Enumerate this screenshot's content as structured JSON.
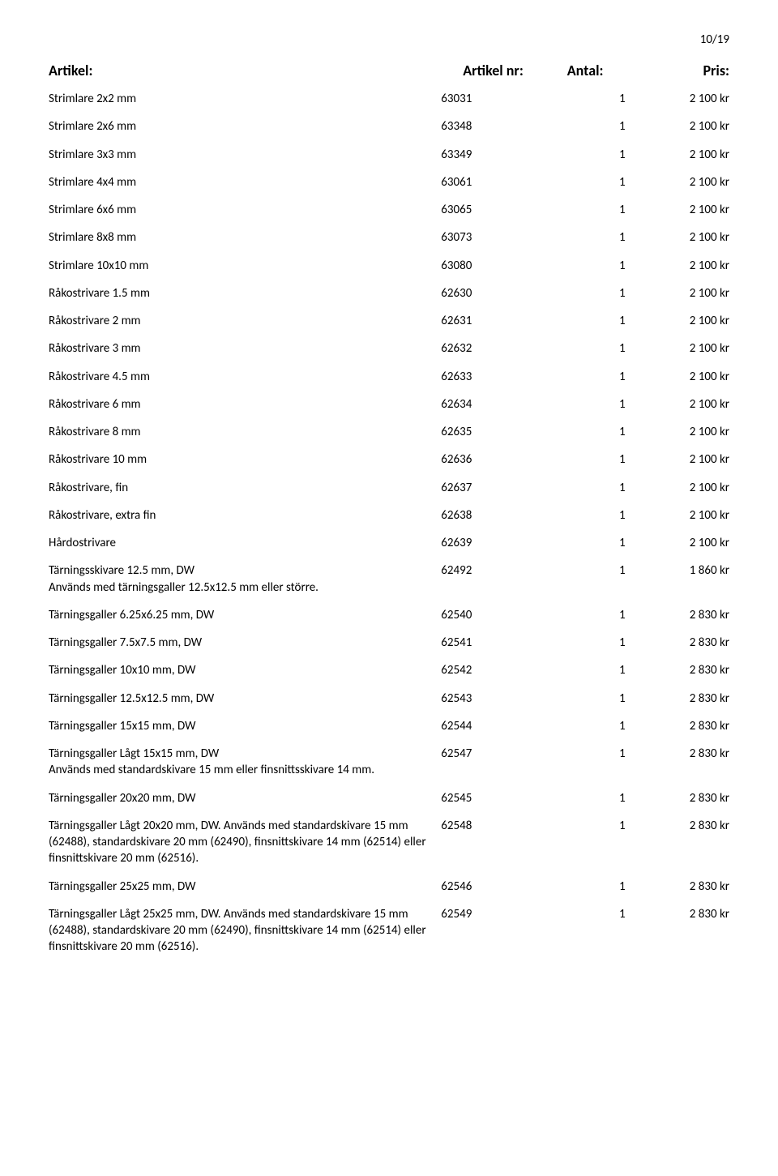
{
  "page_number": "10/19",
  "headers": {
    "article": "Artikel:",
    "article_nr": "Artikel nr:",
    "qty": "Antal:",
    "price": "Pris:"
  },
  "rows": [
    {
      "article": "Strimlare 2x2 mm",
      "nr": "63031",
      "qty": "1",
      "price": "2 100 kr",
      "note": ""
    },
    {
      "article": "Strimlare 2x6 mm",
      "nr": "63348",
      "qty": "1",
      "price": "2 100 kr",
      "note": ""
    },
    {
      "article": "Strimlare 3x3 mm",
      "nr": "63349",
      "qty": "1",
      "price": "2 100 kr",
      "note": ""
    },
    {
      "article": "Strimlare 4x4 mm",
      "nr": "63061",
      "qty": "1",
      "price": "2 100 kr",
      "note": ""
    },
    {
      "article": "Strimlare 6x6 mm",
      "nr": "63065",
      "qty": "1",
      "price": "2 100 kr",
      "note": ""
    },
    {
      "article": "Strimlare 8x8 mm",
      "nr": "63073",
      "qty": "1",
      "price": "2 100 kr",
      "note": ""
    },
    {
      "article": "Strimlare 10x10 mm",
      "nr": "63080",
      "qty": "1",
      "price": "2 100 kr",
      "note": ""
    },
    {
      "article": "Råkostrivare 1.5 mm",
      "nr": "62630",
      "qty": "1",
      "price": "2 100 kr",
      "note": ""
    },
    {
      "article": "Råkostrivare 2 mm",
      "nr": "62631",
      "qty": "1",
      "price": "2 100 kr",
      "note": ""
    },
    {
      "article": "Råkostrivare 3 mm",
      "nr": "62632",
      "qty": "1",
      "price": "2 100 kr",
      "note": ""
    },
    {
      "article": "Råkostrivare 4.5 mm",
      "nr": "62633",
      "qty": "1",
      "price": "2 100 kr",
      "note": ""
    },
    {
      "article": "Råkostrivare 6 mm",
      "nr": "62634",
      "qty": "1",
      "price": "2 100 kr",
      "note": ""
    },
    {
      "article": "Råkostrivare 8 mm",
      "nr": "62635",
      "qty": "1",
      "price": "2 100 kr",
      "note": ""
    },
    {
      "article": "Råkostrivare 10 mm",
      "nr": "62636",
      "qty": "1",
      "price": "2 100 kr",
      "note": ""
    },
    {
      "article": "Råkostrivare, fin",
      "nr": "62637",
      "qty": "1",
      "price": "2 100 kr",
      "note": ""
    },
    {
      "article": "Råkostrivare, extra fin",
      "nr": "62638",
      "qty": "1",
      "price": "2 100 kr",
      "note": ""
    },
    {
      "article": "Hårdostrivare",
      "nr": "62639",
      "qty": "1",
      "price": "2 100 kr",
      "note": ""
    },
    {
      "article": "Tärningsskivare 12.5 mm, DW",
      "nr": "62492",
      "qty": "1",
      "price": "1 860 kr",
      "note": "Används med tärningsgaller 12.5x12.5 mm eller större."
    },
    {
      "article": "Tärningsgaller 6.25x6.25 mm, DW",
      "nr": "62540",
      "qty": "1",
      "price": "2 830 kr",
      "note": ""
    },
    {
      "article": "Tärningsgaller 7.5x7.5 mm, DW",
      "nr": "62541",
      "qty": "1",
      "price": "2 830 kr",
      "note": ""
    },
    {
      "article": "Tärningsgaller 10x10 mm, DW",
      "nr": "62542",
      "qty": "1",
      "price": "2 830 kr",
      "note": ""
    },
    {
      "article": "Tärningsgaller 12.5x12.5 mm, DW",
      "nr": "62543",
      "qty": "1",
      "price": "2 830 kr",
      "note": ""
    },
    {
      "article": "Tärningsgaller 15x15 mm, DW",
      "nr": "62544",
      "qty": "1",
      "price": "2 830 kr",
      "note": ""
    },
    {
      "article": "Tärningsgaller Lågt 15x15 mm, DW",
      "nr": "62547",
      "qty": "1",
      "price": "2 830 kr",
      "note": "Används med standardskivare 15 mm eller finsnittsskivare 14 mm."
    },
    {
      "article": "Tärningsgaller 20x20 mm, DW",
      "nr": "62545",
      "qty": "1",
      "price": "2 830 kr",
      "note": ""
    },
    {
      "article": "Tärningsgaller Lågt 20x20 mm, DW. Används med standardskivare 15 mm (62488), standardskivare 20 mm (62490), finsnittskivare 14 mm (62514) eller finsnittskivare 20 mm (62516).",
      "nr": "62548",
      "qty": "1",
      "price": "2 830 kr",
      "note": ""
    },
    {
      "article": "Tärningsgaller 25x25 mm, DW",
      "nr": "62546",
      "qty": "1",
      "price": "2 830 kr",
      "note": ""
    },
    {
      "article": "Tärningsgaller Lågt 25x25 mm, DW. Används med standardskivare 15 mm (62488), standardskivare 20 mm (62490), finsnittskivare 14 mm (62514) eller finsnittskivare 20 mm (62516).",
      "nr": "62549",
      "qty": "1",
      "price": "2 830 kr",
      "note": ""
    }
  ]
}
